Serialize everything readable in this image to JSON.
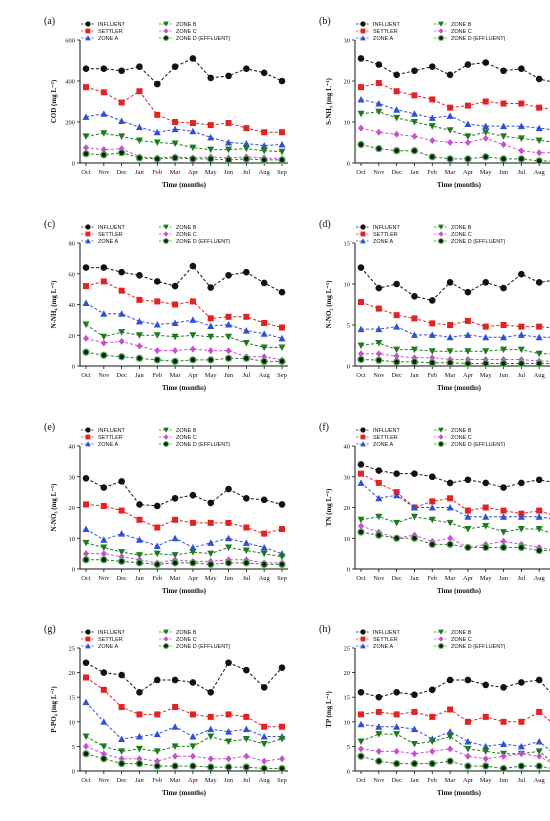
{
  "chart_data": [
    {
      "type": "line",
      "panel_label": "(a)",
      "ylabel": "COD (mg L⁻¹)",
      "xlabel": "Time (months)",
      "ylim": [
        0,
        600
      ],
      "yticks": [
        0,
        200,
        400,
        600
      ],
      "categories": [
        "Oct",
        "Nov",
        "Dec",
        "Jan",
        "Feb",
        "Mar",
        "Apr",
        "May",
        "Jun",
        "Jul",
        "Aug",
        "Sep"
      ],
      "series": [
        {
          "name": "INFLUENT",
          "values": [
            460,
            460,
            450,
            470,
            385,
            470,
            510,
            415,
            425,
            460,
            440,
            400
          ]
        },
        {
          "name": "SETTLER",
          "values": [
            370,
            345,
            295,
            350,
            235,
            200,
            195,
            185,
            195,
            170,
            150,
            150
          ]
        },
        {
          "name": "ZONE A",
          "values": [
            225,
            240,
            205,
            175,
            150,
            165,
            155,
            125,
            100,
            95,
            85,
            90
          ]
        },
        {
          "name": "ZONE B",
          "values": [
            130,
            145,
            130,
            110,
            100,
            95,
            75,
            65,
            65,
            70,
            60,
            55
          ]
        },
        {
          "name": "ZONE C",
          "values": [
            75,
            65,
            70,
            30,
            25,
            30,
            25,
            30,
            25,
            30,
            25,
            20
          ]
        },
        {
          "name": "ZONE D (EFFLUENT)",
          "values": [
            45,
            40,
            50,
            25,
            20,
            25,
            20,
            20,
            15,
            20,
            15,
            15
          ]
        }
      ]
    },
    {
      "type": "line",
      "panel_label": "(b)",
      "ylabel": "S-NH₃ (mg L⁻¹)",
      "xlabel": "Time (months)",
      "ylim": [
        0,
        30
      ],
      "yticks": [
        0,
        10,
        20,
        30
      ],
      "categories": [
        "Oct",
        "Nov",
        "Dec",
        "Jan",
        "Feb",
        "Mar",
        "Apr",
        "May",
        "Jun",
        "Jul",
        "Aug",
        "Sep"
      ],
      "series": [
        {
          "name": "INFLUENT",
          "values": [
            25.5,
            24,
            21.5,
            22.5,
            23.5,
            21.5,
            24,
            24.5,
            22.5,
            23,
            20.5,
            19.5
          ]
        },
        {
          "name": "SETTLER",
          "values": [
            18.5,
            19.5,
            17.5,
            16.5,
            15.5,
            13.5,
            14,
            15,
            14.5,
            14.5,
            13.5,
            13
          ]
        },
        {
          "name": "ZONE A",
          "values": [
            15.5,
            14.5,
            13,
            12,
            11,
            11.5,
            9.5,
            9,
            9,
            9,
            8.5,
            8
          ]
        },
        {
          "name": "ZONE B",
          "values": [
            12,
            12.5,
            11,
            10,
            9,
            8,
            6.5,
            7.5,
            6.5,
            6,
            5.5,
            5
          ]
        },
        {
          "name": "ZONE C",
          "values": [
            8.5,
            7.5,
            7,
            6.5,
            5.5,
            5,
            5,
            6,
            4.5,
            3,
            2.5,
            2.5
          ]
        },
        {
          "name": "ZONE D (EFFLUENT)",
          "values": [
            4.5,
            3.5,
            3,
            3,
            1.5,
            1,
            1,
            1.5,
            1,
            1,
            0.5,
            0.5
          ]
        }
      ]
    },
    {
      "type": "line",
      "panel_label": "(c)",
      "ylabel": "N-NH₄ (mg L⁻¹)",
      "xlabel": "Time (months)",
      "ylim": [
        0,
        80
      ],
      "yticks": [
        0,
        20,
        40,
        60,
        80
      ],
      "categories": [
        "Oct",
        "Nov",
        "Dec",
        "Jan",
        "Feb",
        "Mar",
        "Apr",
        "May",
        "Jun",
        "Jul",
        "Aug",
        "Sep"
      ],
      "series": [
        {
          "name": "INFLUENT",
          "values": [
            64,
            64,
            61,
            59,
            55,
            52,
            65,
            51,
            59,
            61,
            54,
            48
          ]
        },
        {
          "name": "SETTLER",
          "values": [
            52,
            55,
            49,
            43,
            42,
            40,
            42,
            31,
            32,
            32,
            28,
            25
          ]
        },
        {
          "name": "ZONE A",
          "values": [
            41,
            34,
            34,
            29,
            27,
            28,
            30,
            26,
            27,
            23,
            21,
            18
          ]
        },
        {
          "name": "ZONE B",
          "values": [
            27,
            19,
            22,
            20,
            20,
            19,
            20,
            19,
            19,
            15,
            12,
            12
          ]
        },
        {
          "name": "ZONE C",
          "values": [
            18,
            15,
            16,
            13,
            10,
            10,
            11,
            10,
            10,
            6,
            6,
            4
          ]
        },
        {
          "name": "ZONE D (EFFLUENT)",
          "values": [
            9,
            7,
            6,
            5,
            4,
            3,
            4,
            4,
            5,
            5,
            3,
            3
          ]
        }
      ]
    },
    {
      "type": "line",
      "panel_label": "(d)",
      "ylabel": "N-NO₂ (mg L⁻¹)",
      "xlabel": "Time (months)",
      "ylim": [
        0,
        15
      ],
      "yticks": [
        0,
        5,
        10,
        15
      ],
      "categories": [
        "Oct",
        "Nov",
        "Dec",
        "Jan",
        "Feb",
        "Mar",
        "Apr",
        "May",
        "Jun",
        "Jul",
        "Aug",
        "Sep"
      ],
      "series": [
        {
          "name": "INFLUENT",
          "values": [
            12,
            9.5,
            10,
            8.5,
            8,
            10.2,
            9,
            10.2,
            9.5,
            11.2,
            10.2,
            10.5
          ]
        },
        {
          "name": "SETTLER",
          "values": [
            7.8,
            7,
            6.2,
            5.8,
            5.2,
            5,
            5.5,
            4.8,
            5,
            4.8,
            4.8,
            4.6
          ]
        },
        {
          "name": "ZONE A",
          "values": [
            4.5,
            4.5,
            4.8,
            3.8,
            3.8,
            3.5,
            3.8,
            3.5,
            3.5,
            3.8,
            3.5,
            3.5
          ]
        },
        {
          "name": "ZONE B",
          "values": [
            2.5,
            2.8,
            2,
            2,
            1.8,
            1.8,
            1.8,
            1.8,
            2,
            2,
            1.5,
            1.5
          ]
        },
        {
          "name": "ZONE C",
          "values": [
            1.5,
            1.5,
            1.2,
            1,
            1,
            0.8,
            0.8,
            0.8,
            0.8,
            0.8,
            0.6,
            0.6
          ]
        },
        {
          "name": "ZONE D (EFFLUENT)",
          "values": [
            0.8,
            0.7,
            0.5,
            0.5,
            0.4,
            0.4,
            0.3,
            0.3,
            0.3,
            0.3,
            0.3,
            0.3
          ]
        }
      ]
    },
    {
      "type": "line",
      "panel_label": "(e)",
      "ylabel": "N-NO₃ (mg L⁻¹)",
      "xlabel": "Time (months)",
      "ylim": [
        0,
        40
      ],
      "yticks": [
        0,
        10,
        20,
        30,
        40
      ],
      "categories": [
        "Oct",
        "Nov",
        "Dec",
        "Jan",
        "Feb",
        "Mar",
        "Apr",
        "May",
        "Jun",
        "Jul",
        "Aug",
        "Sep"
      ],
      "series": [
        {
          "name": "INFLUENT",
          "values": [
            29.5,
            26.5,
            28.5,
            21,
            20.5,
            23,
            24,
            21.5,
            26,
            23,
            22.5,
            21
          ]
        },
        {
          "name": "SETTLER",
          "values": [
            21,
            20.5,
            19,
            16,
            13.5,
            16,
            15,
            15,
            15,
            13.5,
            11.5,
            13
          ]
        },
        {
          "name": "ZONE A",
          "values": [
            13,
            9.5,
            11.5,
            9.5,
            7.5,
            10,
            7,
            8.5,
            10,
            8.5,
            7,
            5
          ]
        },
        {
          "name": "ZONE B",
          "values": [
            8.5,
            7,
            5.5,
            4.5,
            5,
            4.5,
            5.5,
            5,
            7,
            6,
            5,
            4
          ]
        },
        {
          "name": "ZONE C",
          "values": [
            5,
            5,
            4,
            3,
            2,
            3,
            2.5,
            2.5,
            3,
            3,
            2,
            2
          ]
        },
        {
          "name": "ZONE D (EFFLUENT)",
          "values": [
            3,
            3,
            2.5,
            2,
            1.5,
            2,
            2,
            1.5,
            2,
            2,
            1.5,
            1.5
          ]
        }
      ]
    },
    {
      "type": "line",
      "panel_label": "(f)",
      "ylabel": "TN (mg L⁻¹)",
      "xlabel": "Time (months)",
      "ylim": [
        0,
        40
      ],
      "yticks": [
        0,
        10,
        20,
        30,
        40
      ],
      "categories": [
        "Oct",
        "Nov",
        "Dec",
        "Jan",
        "Feb",
        "Mar",
        "Apr",
        "May",
        "Jun",
        "Jul",
        "Aug",
        "Sep"
      ],
      "series": [
        {
          "name": "INFLUENT",
          "values": [
            34,
            32,
            31,
            31,
            30,
            28,
            29,
            28,
            26.5,
            28,
            29,
            28
          ]
        },
        {
          "name": "SETTLER",
          "values": [
            31,
            28,
            25,
            20,
            22,
            23,
            19,
            20,
            19,
            18,
            19,
            17
          ]
        },
        {
          "name": "ZONE A",
          "values": [
            28,
            23,
            24,
            20,
            20,
            20,
            17,
            17,
            17,
            17,
            17,
            16
          ]
        },
        {
          "name": "ZONE B",
          "values": [
            16,
            17,
            15,
            17,
            16,
            15,
            13,
            14,
            12,
            13,
            13,
            11
          ]
        },
        {
          "name": "ZONE C",
          "values": [
            14,
            12,
            10,
            11,
            9,
            10,
            7,
            8,
            9,
            8,
            7,
            6
          ]
        },
        {
          "name": "ZONE D (EFFLUENT)",
          "values": [
            12,
            11,
            10,
            10,
            8,
            8,
            7,
            7,
            7,
            7,
            6,
            6
          ]
        }
      ]
    },
    {
      "type": "line",
      "panel_label": "(g)",
      "ylabel": "P-PO₄ (mg L⁻¹)",
      "xlabel": "Time (months)",
      "ylim": [
        0,
        25
      ],
      "yticks": [
        0,
        5,
        10,
        15,
        20,
        25
      ],
      "categories": [
        "Oct",
        "Nov",
        "Dec",
        "Jan",
        "Feb",
        "Mar",
        "Apr",
        "May",
        "Jun",
        "Jul",
        "Aug",
        "Sep"
      ],
      "series": [
        {
          "name": "INFLUENT",
          "values": [
            22,
            20,
            19.5,
            16,
            18.5,
            18.5,
            18,
            16,
            22,
            20.5,
            17,
            21
          ]
        },
        {
          "name": "SETTLER",
          "values": [
            19,
            16.5,
            13,
            11.5,
            11.5,
            13,
            11.5,
            11,
            11.5,
            11,
            9,
            9
          ]
        },
        {
          "name": "ZONE A",
          "values": [
            14,
            10,
            6.5,
            7,
            7.5,
            9,
            7,
            8.5,
            8,
            8.5,
            7,
            7
          ]
        },
        {
          "name": "ZONE B",
          "values": [
            7,
            5,
            4,
            4.5,
            4,
            5,
            5,
            7,
            6,
            6.5,
            5.5,
            6.5
          ]
        },
        {
          "name": "ZONE C",
          "values": [
            5,
            3.5,
            2.5,
            2.5,
            2,
            3,
            3,
            2.5,
            2.5,
            3,
            2,
            2.5
          ]
        },
        {
          "name": "ZONE D (EFFLUENT)",
          "values": [
            3.5,
            2.5,
            1.5,
            1.5,
            1,
            1,
            1,
            0.8,
            0.8,
            0.8,
            0.5,
            0.5
          ]
        }
      ]
    },
    {
      "type": "line",
      "panel_label": "(h)",
      "ylabel": "TP (mg L⁻¹)",
      "xlabel": "Time (months)",
      "ylim": [
        0,
        25
      ],
      "yticks": [
        0,
        5,
        10,
        15,
        20,
        25
      ],
      "categories": [
        "Oct",
        "Nov",
        "Dec",
        "Jan",
        "Feb",
        "Mar",
        "Apr",
        "May",
        "Jun",
        "Jul",
        "Aug",
        "Sep"
      ],
      "series": [
        {
          "name": "INFLUENT",
          "values": [
            16,
            15,
            16,
            15.5,
            16.5,
            18.5,
            18.5,
            17.5,
            17,
            18,
            18.5,
            14.5
          ]
        },
        {
          "name": "SETTLER",
          "values": [
            11.5,
            12,
            11.5,
            12,
            11,
            12.5,
            10,
            11,
            10,
            10,
            12,
            9
          ]
        },
        {
          "name": "ZONE A",
          "values": [
            9.5,
            9,
            9,
            8.5,
            6.5,
            8,
            6,
            5,
            5.5,
            5,
            6,
            3
          ]
        },
        {
          "name": "ZONE B",
          "values": [
            6,
            7.5,
            7.5,
            5.5,
            6,
            7,
            4.5,
            4,
            3.5,
            3.5,
            4,
            1
          ]
        },
        {
          "name": "ZONE C",
          "values": [
            4.5,
            4,
            4,
            3.5,
            4,
            4.5,
            3,
            2.5,
            3,
            3.5,
            3,
            1
          ]
        },
        {
          "name": "ZONE D (EFFLUENT)",
          "values": [
            3,
            2,
            1.5,
            1.5,
            1.5,
            2,
            1,
            1,
            0.5,
            1,
            1,
            0.3
          ]
        }
      ]
    }
  ],
  "legend": {
    "entries": [
      "INFLUENT",
      "SETTLER",
      "ZONE A",
      "ZONE B",
      "ZONE C",
      "ZONE D (EFFLUENT)"
    ],
    "colors": [
      "#111111",
      "#e32222",
      "#2f4fd8",
      "#1e7a1e",
      "#c94fd0",
      "#2e7d32"
    ],
    "markers": [
      "circle",
      "square",
      "triangle-up",
      "triangle-down",
      "diamond",
      "circle-open"
    ],
    "placement": "top-left"
  },
  "colors": {
    "INFLUENT": "#111111",
    "SETTLER": "#e32222",
    "ZONE A": "#2f4fd8",
    "ZONE B": "#1e7a1e",
    "ZONE C": "#c94fd0",
    "ZONE D (EFFLUENT)": "#2e7d32"
  }
}
